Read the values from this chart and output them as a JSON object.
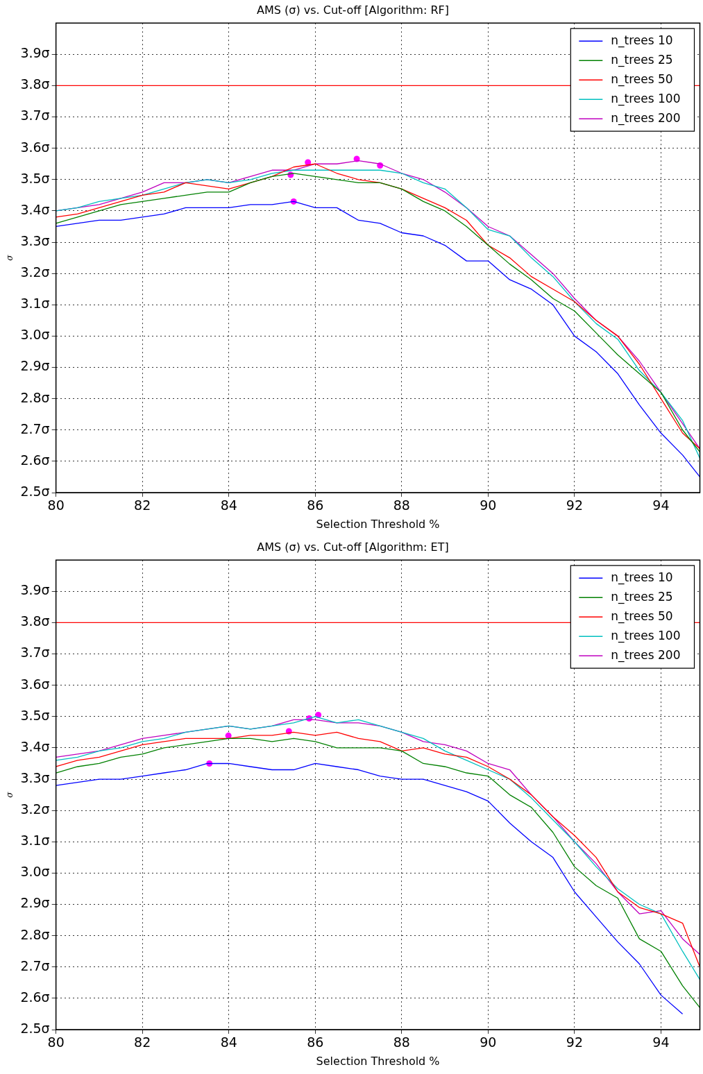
{
  "chart_data": [
    {
      "type": "line",
      "title": "AMS (σ) vs. Cut-off [Algorithm: RF]",
      "xlabel": "Selection Threshold %",
      "ylabel": "σ",
      "legend": "top right",
      "grid": true,
      "line_style": "solid",
      "x": [
        80,
        80.5,
        81,
        81.5,
        82,
        82.5,
        83,
        83.5,
        84,
        84.5,
        85,
        85.5,
        86,
        86.5,
        87,
        87.5,
        88,
        88.5,
        89,
        89.5,
        90,
        90.5,
        91,
        91.5,
        92,
        92.5,
        93,
        93.5,
        94,
        94.5,
        94.9
      ],
      "xlim": [
        80,
        94.9
      ],
      "xticks": [
        80,
        82,
        84,
        86,
        88,
        90,
        92,
        94
      ],
      "ylim": [
        2.5,
        4.0
      ],
      "yticks": [
        {
          "value": 2.5,
          "label": "2.5σ"
        },
        {
          "value": 2.6,
          "label": "2.6σ"
        },
        {
          "value": 2.7,
          "label": "2.7σ"
        },
        {
          "value": 2.8,
          "label": "2.8σ"
        },
        {
          "value": 2.9,
          "label": "2.9σ"
        },
        {
          "value": 3.0,
          "label": "3.0σ"
        },
        {
          "value": 3.1,
          "label": "3.1σ"
        },
        {
          "value": 3.2,
          "label": "3.2σ"
        },
        {
          "value": 3.3,
          "label": "3.3σ"
        },
        {
          "value": 3.4,
          "label": "3.4σ"
        },
        {
          "value": 3.5,
          "label": "3.5σ"
        },
        {
          "value": 3.6,
          "label": "3.6σ"
        },
        {
          "value": 3.7,
          "label": "3.7σ"
        },
        {
          "value": 3.8,
          "label": "3.8σ"
        },
        {
          "value": 3.9,
          "label": "3.9σ"
        }
      ],
      "ref_lines": [
        {
          "axis": "y",
          "value": 3.8,
          "color": "#ff0000"
        }
      ],
      "series": [
        {
          "name": "n_trees 10",
          "color": "#0000ff",
          "values": [
            3.35,
            3.36,
            3.37,
            3.37,
            3.38,
            3.39,
            3.41,
            3.41,
            3.41,
            3.42,
            3.42,
            3.43,
            3.41,
            3.41,
            3.37,
            3.36,
            3.33,
            3.32,
            3.29,
            3.24,
            3.24,
            3.18,
            3.15,
            3.1,
            3.0,
            2.95,
            2.88,
            2.78,
            2.69,
            2.62,
            2.55
          ]
        },
        {
          "name": "n_trees 25",
          "color": "#008000",
          "values": [
            3.36,
            3.38,
            3.4,
            3.42,
            3.43,
            3.44,
            3.45,
            3.46,
            3.46,
            3.49,
            3.51,
            3.52,
            3.51,
            3.5,
            3.49,
            3.49,
            3.47,
            3.43,
            3.4,
            3.35,
            3.29,
            3.23,
            3.18,
            3.12,
            3.08,
            3.01,
            2.94,
            2.88,
            2.82,
            2.7,
            2.63
          ]
        },
        {
          "name": "n_trees 50",
          "color": "#ff0000",
          "values": [
            3.38,
            3.39,
            3.41,
            3.43,
            3.45,
            3.46,
            3.49,
            3.48,
            3.47,
            3.49,
            3.51,
            3.54,
            3.55,
            3.52,
            3.5,
            3.49,
            3.47,
            3.44,
            3.41,
            3.37,
            3.29,
            3.25,
            3.19,
            3.15,
            3.11,
            3.05,
            3.0,
            2.91,
            2.8,
            2.69,
            2.64
          ]
        },
        {
          "name": "n_trees 100",
          "color": "#00bfbf",
          "values": [
            3.4,
            3.41,
            3.43,
            3.44,
            3.45,
            3.47,
            3.49,
            3.5,
            3.49,
            3.5,
            3.52,
            3.53,
            3.53,
            3.53,
            3.53,
            3.53,
            3.52,
            3.49,
            3.47,
            3.41,
            3.34,
            3.32,
            3.25,
            3.19,
            3.11,
            3.04,
            2.99,
            2.89,
            2.82,
            2.73,
            2.61
          ]
        },
        {
          "name": "n_trees 200",
          "color": "#bf00bf",
          "values": [
            3.4,
            3.41,
            3.42,
            3.44,
            3.46,
            3.49,
            3.49,
            3.5,
            3.49,
            3.51,
            3.53,
            3.53,
            3.55,
            3.55,
            3.56,
            3.55,
            3.52,
            3.5,
            3.46,
            3.41,
            3.35,
            3.32,
            3.26,
            3.2,
            3.12,
            3.05,
            3.0,
            2.92,
            2.82,
            2.72,
            2.64
          ]
        },
        {
          "type": "scatter",
          "marker": "circle",
          "color": "#ff00ff",
          "x": [
            85.43,
            85.5,
            85.83,
            86.96,
            87.5
          ],
          "values": [
            3.515,
            3.43,
            3.555,
            3.566,
            3.545
          ]
        }
      ]
    },
    {
      "type": "line",
      "title": "AMS (σ) vs. Cut-off [Algorithm: ET]",
      "xlabel": "Selection Threshold %",
      "ylabel": "σ",
      "legend": "top right",
      "grid": true,
      "line_style": "solid",
      "x": [
        80,
        80.5,
        81,
        81.5,
        82,
        82.5,
        83,
        83.5,
        84,
        84.5,
        85,
        85.5,
        86,
        86.5,
        87,
        87.5,
        88,
        88.5,
        89,
        89.5,
        90,
        90.5,
        91,
        91.5,
        92,
        92.5,
        93,
        93.5,
        94,
        94.5,
        94.9
      ],
      "xlim": [
        80,
        94.9
      ],
      "xticks": [
        80,
        82,
        84,
        86,
        88,
        90,
        92,
        94
      ],
      "ylim": [
        2.5,
        4.0
      ],
      "yticks": [
        {
          "value": 2.5,
          "label": "2.5σ"
        },
        {
          "value": 2.6,
          "label": "2.6σ"
        },
        {
          "value": 2.7,
          "label": "2.7σ"
        },
        {
          "value": 2.8,
          "label": "2.8σ"
        },
        {
          "value": 2.9,
          "label": "2.9σ"
        },
        {
          "value": 3.0,
          "label": "3.0σ"
        },
        {
          "value": 3.1,
          "label": "3.1σ"
        },
        {
          "value": 3.2,
          "label": "3.2σ"
        },
        {
          "value": 3.3,
          "label": "3.3σ"
        },
        {
          "value": 3.4,
          "label": "3.4σ"
        },
        {
          "value": 3.5,
          "label": "3.5σ"
        },
        {
          "value": 3.6,
          "label": "3.6σ"
        },
        {
          "value": 3.7,
          "label": "3.7σ"
        },
        {
          "value": 3.8,
          "label": "3.8σ"
        },
        {
          "value": 3.9,
          "label": "3.9σ"
        }
      ],
      "ref_lines": [
        {
          "axis": "y",
          "value": 3.8,
          "color": "#ff0000"
        }
      ],
      "series": [
        {
          "name": "n_trees 10",
          "color": "#0000ff",
          "values": [
            3.28,
            3.29,
            3.3,
            3.3,
            3.31,
            3.32,
            3.33,
            3.35,
            3.35,
            3.34,
            3.33,
            3.33,
            3.35,
            3.34,
            3.33,
            3.31,
            3.3,
            3.3,
            3.28,
            3.26,
            3.23,
            3.16,
            3.1,
            3.05,
            2.94,
            2.86,
            2.78,
            2.71,
            2.61,
            2.55,
            null
          ]
        },
        {
          "name": "n_trees 25",
          "color": "#008000",
          "values": [
            3.32,
            3.34,
            3.35,
            3.37,
            3.38,
            3.4,
            3.41,
            3.42,
            3.43,
            3.43,
            3.42,
            3.43,
            3.42,
            3.4,
            3.4,
            3.4,
            3.39,
            3.35,
            3.34,
            3.32,
            3.31,
            3.25,
            3.21,
            3.13,
            3.02,
            2.96,
            2.92,
            2.79,
            2.75,
            2.64,
            2.57
          ]
        },
        {
          "name": "n_trees 50",
          "color": "#ff0000",
          "values": [
            3.34,
            3.36,
            3.37,
            3.39,
            3.41,
            3.42,
            3.43,
            3.43,
            3.43,
            3.44,
            3.44,
            3.45,
            3.44,
            3.45,
            3.43,
            3.42,
            3.39,
            3.4,
            3.38,
            3.37,
            3.34,
            3.3,
            3.25,
            3.18,
            3.12,
            3.05,
            2.94,
            2.89,
            2.87,
            2.84,
            2.7
          ]
        },
        {
          "name": "n_trees 100",
          "color": "#00bfbf",
          "values": [
            3.36,
            3.37,
            3.39,
            3.4,
            3.42,
            3.43,
            3.45,
            3.46,
            3.47,
            3.46,
            3.47,
            3.48,
            3.5,
            3.48,
            3.49,
            3.47,
            3.45,
            3.43,
            3.39,
            3.36,
            3.33,
            3.3,
            3.24,
            3.17,
            3.1,
            3.02,
            2.95,
            2.9,
            2.87,
            2.75,
            2.66
          ]
        },
        {
          "name": "n_trees 200",
          "color": "#bf00bf",
          "values": [
            3.37,
            3.38,
            3.39,
            3.41,
            3.43,
            3.44,
            3.45,
            3.46,
            3.47,
            3.46,
            3.47,
            3.49,
            3.49,
            3.48,
            3.48,
            3.47,
            3.45,
            3.42,
            3.41,
            3.39,
            3.35,
            3.33,
            3.25,
            3.18,
            3.1,
            3.03,
            2.94,
            2.87,
            2.88,
            2.79,
            2.74
          ]
        },
        {
          "type": "scatter",
          "marker": "circle",
          "color": "#ff00ff",
          "x": [
            83.55,
            83.99,
            85.39,
            85.86,
            86.07
          ],
          "values": [
            3.35,
            3.439,
            3.453,
            3.494,
            3.505
          ]
        }
      ]
    }
  ]
}
